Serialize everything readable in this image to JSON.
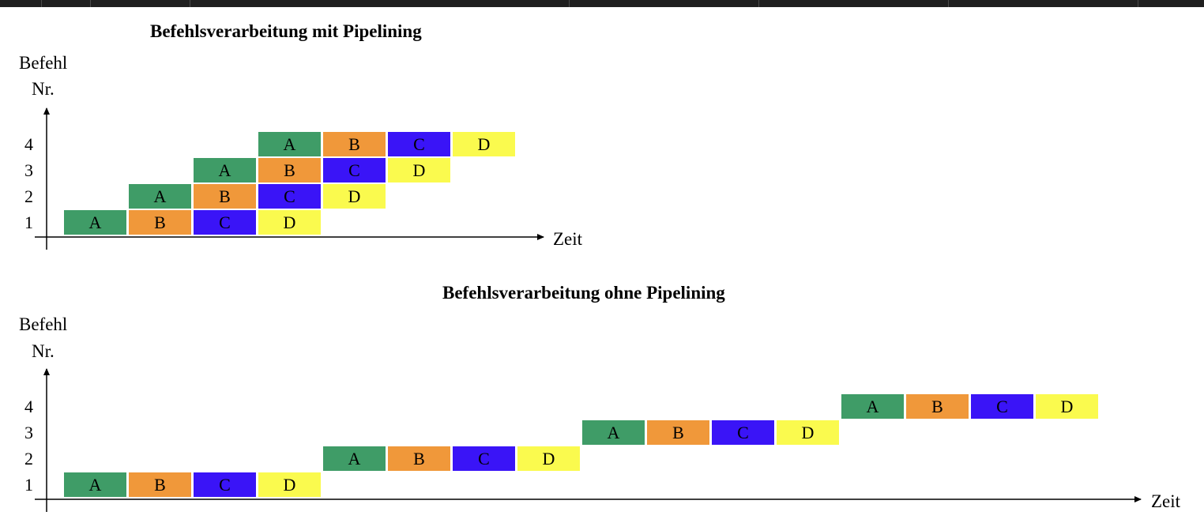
{
  "phase_colors": {
    "A": "#3f9c67",
    "B": "#f0983a",
    "C": "#3a14f7",
    "D": "#fafa4e"
  },
  "diagram_top": {
    "title": "Befehlsverarbeitung mit Pipelining",
    "y_label_line1": "Befehl",
    "y_label_line2": "Nr.",
    "x_label": "Zeit",
    "rows": [
      "1",
      "2",
      "3",
      "4"
    ],
    "cells": [
      [
        "A",
        "B",
        "C",
        "D"
      ],
      [
        "A",
        "B",
        "C",
        "D"
      ],
      [
        "A",
        "B",
        "C",
        "D"
      ],
      [
        "A",
        "B",
        "C",
        "D"
      ]
    ]
  },
  "diagram_bottom": {
    "title": "Befehlsverarbeitung ohne Pipelining",
    "y_label_line1": "Befehl",
    "y_label_line2": "Nr.",
    "x_label": "Zeit",
    "rows": [
      "1",
      "2",
      "3",
      "4"
    ],
    "cells": [
      [
        "A",
        "B",
        "C",
        "D"
      ],
      [
        "A",
        "B",
        "C",
        "D"
      ],
      [
        "A",
        "B",
        "C",
        "D"
      ],
      [
        "A",
        "B",
        "C",
        "D"
      ]
    ]
  }
}
